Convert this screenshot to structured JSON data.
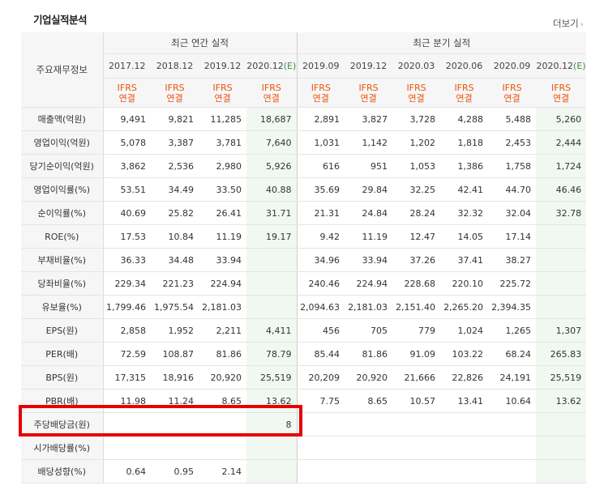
{
  "section_title": "기업실적분석",
  "more_label": "더보기",
  "header": {
    "row_label": "주요재무정보",
    "annual_label": "최근 연간 실적",
    "quarter_label": "최근 분기 실적",
    "annual_periods": [
      "2017.12",
      "2018.12",
      "2019.12",
      "2020.12"
    ],
    "quarter_periods": [
      "2019.09",
      "2019.12",
      "2020.03",
      "2020.06",
      "2020.09",
      "2020.12"
    ],
    "estimate_suffix": "(E)",
    "ifrs_line1": "IFRS",
    "ifrs_line2": "연결"
  },
  "rows": [
    {
      "label": "매출액(억원)",
      "values": [
        "9,491",
        "9,821",
        "11,285",
        "18,687",
        "2,891",
        "3,827",
        "3,728",
        "4,288",
        "5,488",
        "5,260"
      ]
    },
    {
      "label": "영업이익(억원)",
      "values": [
        "5,078",
        "3,387",
        "3,781",
        "7,640",
        "1,031",
        "1,142",
        "1,202",
        "1,818",
        "2,453",
        "2,444"
      ]
    },
    {
      "label": "당기순이익(억원)",
      "values": [
        "3,862",
        "2,536",
        "2,980",
        "5,926",
        "616",
        "951",
        "1,053",
        "1,386",
        "1,758",
        "1,724"
      ]
    },
    {
      "label": "영업이익률(%)",
      "values": [
        "53.51",
        "34.49",
        "33.50",
        "40.88",
        "35.69",
        "29.84",
        "32.25",
        "42.41",
        "44.70",
        "46.46"
      ]
    },
    {
      "label": "순이익률(%)",
      "values": [
        "40.69",
        "25.82",
        "26.41",
        "31.71",
        "21.31",
        "24.84",
        "28.24",
        "32.32",
        "32.04",
        "32.78"
      ]
    },
    {
      "label": "ROE(%)",
      "values": [
        "17.53",
        "10.84",
        "11.19",
        "19.17",
        "9.42",
        "11.19",
        "12.47",
        "14.05",
        "17.14",
        ""
      ]
    },
    {
      "label": "부채비율(%)",
      "values": [
        "36.33",
        "34.48",
        "33.94",
        "",
        "34.96",
        "33.94",
        "37.26",
        "37.41",
        "38.27",
        ""
      ]
    },
    {
      "label": "당좌비율(%)",
      "values": [
        "229.34",
        "221.23",
        "224.94",
        "",
        "240.46",
        "224.94",
        "228.68",
        "220.10",
        "225.72",
        ""
      ]
    },
    {
      "label": "유보율(%)",
      "values": [
        "1,799.46",
        "1,975.54",
        "2,181.03",
        "",
        "2,094.63",
        "2,181.03",
        "2,151.40",
        "2,265.20",
        "2,394.35",
        ""
      ]
    },
    {
      "label": "EPS(원)",
      "values": [
        "2,858",
        "1,952",
        "2,211",
        "4,411",
        "456",
        "705",
        "779",
        "1,024",
        "1,265",
        "1,307"
      ]
    },
    {
      "label": "PER(배)",
      "values": [
        "72.59",
        "108.87",
        "81.86",
        "78.79",
        "85.44",
        "81.86",
        "91.09",
        "103.22",
        "68.24",
        "265.83"
      ]
    },
    {
      "label": "BPS(원)",
      "values": [
        "17,315",
        "18,916",
        "20,920",
        "25,519",
        "20,209",
        "20,920",
        "21,666",
        "22,826",
        "24,191",
        "25,519"
      ]
    },
    {
      "label": "PBR(배)",
      "values": [
        "11.98",
        "11.24",
        "8.65",
        "13.62",
        "7.75",
        "8.65",
        "10.57",
        "13.41",
        "10.64",
        "13.62"
      ]
    },
    {
      "label": "주당배당금(원)",
      "values": [
        "",
        "",
        "",
        "8",
        "",
        "",
        "",
        "",
        "",
        ""
      ]
    },
    {
      "label": "시가배당률(%)",
      "values": [
        "",
        "",
        "",
        "",
        "",
        "",
        "",
        "",
        "",
        ""
      ]
    },
    {
      "label": "배당성향(%)",
      "values": [
        "0.64",
        "0.95",
        "2.14",
        "",
        "",
        "",
        "",
        "",
        "",
        ""
      ]
    }
  ],
  "footnote": "-"
}
